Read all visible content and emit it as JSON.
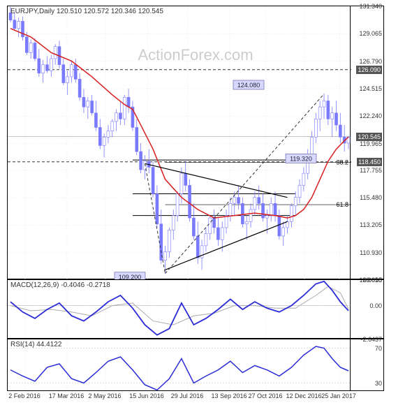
{
  "symbol": "EURJPY",
  "timeframe": "Daily",
  "ohlc": {
    "o": "120.510",
    "h": "120.572",
    "l": "120.346",
    "c": "120.545"
  },
  "watermark": "ActionForex.com",
  "main": {
    "ylim": [
      108.655,
      131.34
    ],
    "yticks": [
      131.34,
      129.065,
      126.79,
      124.515,
      122.24,
      119.965,
      117.755,
      115.48,
      113.205,
      110.93,
      108.655
    ],
    "current_price": 120.545,
    "dashed_levels": [
      {
        "value": 126.09,
        "tag": "126.090"
      },
      {
        "value": 118.45,
        "tag": "118.450"
      }
    ],
    "fib_lines": [
      {
        "value": 118.4,
        "label": "38.2"
      },
      {
        "value": 114.9,
        "label": "61.8"
      }
    ],
    "price_labels": [
      {
        "text": "124.080",
        "x": 345,
        "y_val": 124.8
      },
      {
        "text": "119.320",
        "x": 420,
        "y_val": 118.7
      },
      {
        "text": "109.200",
        "x": 175,
        "y_val": 108.9
      }
    ],
    "solid_hlines": [
      118.6,
      115.8,
      114.0
    ],
    "ma_color": "#d81e1e",
    "candle_up": "#7a7aff",
    "candle_dn": "#7a7aff",
    "triangle_color": "#000",
    "projection_color": "#333"
  },
  "macd": {
    "title": "MACD(12,26,9) -0.4046 -0.2718",
    "ylim": [
      -2.6437,
      2.0018
    ],
    "yticks": [
      2.0018,
      0.0,
      -2.6437
    ],
    "macd_color": "#2b2bd6",
    "signal_color": "#aaa"
  },
  "rsi": {
    "title": "RSI(14) 44.4122",
    "ylim": [
      20,
      80
    ],
    "yticks": [
      70,
      30
    ],
    "line_color": "#2b2bd6"
  },
  "x_dates": [
    "2 Feb 2016",
    "17 Mar 2016",
    "2 May 2016",
    "15 Jun 2016",
    "29 Jul 2016",
    "13 Sep 2016",
    "27 Oct 2016",
    "12 Dec 2016",
    "25 Jan 2017"
  ],
  "x_positions": [
    25,
    85,
    140,
    200,
    258,
    318,
    370,
    425,
    475
  ],
  "candles": [
    [
      0,
      130.8,
      131.3,
      130.0,
      130.2
    ],
    [
      1,
      130.2,
      130.9,
      129.3,
      129.5
    ],
    [
      2,
      129.5,
      130.4,
      128.8,
      130.1
    ],
    [
      3,
      130.1,
      130.5,
      128.5,
      128.8
    ],
    [
      4,
      128.8,
      129.2,
      127.3,
      127.5
    ],
    [
      5,
      127.5,
      128.6,
      127.0,
      128.3
    ],
    [
      6,
      128.3,
      128.7,
      126.8,
      127.0
    ],
    [
      7,
      127.0,
      127.8,
      125.5,
      125.8
    ],
    [
      8,
      125.8,
      126.9,
      125.0,
      126.5
    ],
    [
      9,
      126.5,
      127.2,
      125.8,
      126.0
    ],
    [
      10,
      126.0,
      127.3,
      125.5,
      127.0
    ],
    [
      11,
      127.0,
      128.2,
      126.5,
      128.0
    ],
    [
      12,
      128.0,
      128.5,
      126.2,
      126.5
    ],
    [
      13,
      126.5,
      127.0,
      124.8,
      125.0
    ],
    [
      14,
      125.0,
      126.0,
      124.0,
      125.5
    ],
    [
      15,
      125.5,
      126.8,
      125.0,
      126.5
    ],
    [
      16,
      126.5,
      127.0,
      125.0,
      125.3
    ],
    [
      17,
      125.3,
      125.8,
      123.5,
      123.8
    ],
    [
      18,
      123.8,
      124.5,
      122.5,
      123.0
    ],
    [
      19,
      123.0,
      123.8,
      122.0,
      123.5
    ],
    [
      20,
      123.5,
      124.0,
      122.3,
      122.5
    ],
    [
      21,
      122.5,
      123.5,
      121.0,
      121.3
    ],
    [
      22,
      121.3,
      122.0,
      119.5,
      119.8
    ],
    [
      23,
      119.8,
      120.8,
      118.8,
      120.5
    ],
    [
      24,
      120.5,
      121.5,
      120.0,
      121.0
    ],
    [
      25,
      121.0,
      122.0,
      120.5,
      121.8
    ],
    [
      26,
      121.8,
      122.8,
      121.0,
      122.5
    ],
    [
      27,
      122.5,
      123.5,
      121.5,
      122.0
    ],
    [
      28,
      122.0,
      124.0,
      121.5,
      123.8
    ],
    [
      29,
      123.8,
      124.5,
      122.5,
      123.0
    ],
    [
      30,
      123.0,
      123.5,
      121.0,
      121.3
    ],
    [
      31,
      121.3,
      122.0,
      119.0,
      119.3
    ],
    [
      32,
      119.3,
      120.0,
      117.5,
      117.8
    ],
    [
      33,
      117.8,
      119.0,
      117.0,
      118.5
    ],
    [
      34,
      118.5,
      119.5,
      117.5,
      118.0
    ],
    [
      35,
      118.0,
      118.5,
      115.5,
      115.8
    ],
    [
      36,
      115.8,
      116.5,
      113.0,
      113.3
    ],
    [
      37,
      113.3,
      114.5,
      110.0,
      110.3
    ],
    [
      38,
      110.3,
      111.5,
      109.2,
      111.0
    ],
    [
      39,
      111.0,
      113.0,
      110.5,
      112.8
    ],
    [
      40,
      112.8,
      114.5,
      112.0,
      114.0
    ],
    [
      41,
      114.0,
      116.0,
      113.5,
      115.8
    ],
    [
      42,
      115.8,
      118.0,
      115.0,
      117.5
    ],
    [
      43,
      117.5,
      118.5,
      116.0,
      116.5
    ],
    [
      44,
      116.5,
      117.0,
      113.5,
      113.8
    ],
    [
      45,
      113.8,
      115.0,
      112.0,
      112.3
    ],
    [
      46,
      112.3,
      113.5,
      110.0,
      110.5
    ],
    [
      47,
      110.5,
      112.0,
      109.5,
      111.5
    ],
    [
      48,
      111.5,
      113.0,
      111.0,
      112.5
    ],
    [
      49,
      112.5,
      114.0,
      112.0,
      113.8
    ],
    [
      50,
      113.8,
      114.5,
      112.5,
      113.0
    ],
    [
      51,
      113.0,
      113.8,
      111.5,
      112.0
    ],
    [
      52,
      112.0,
      113.5,
      111.0,
      113.0
    ],
    [
      53,
      113.0,
      114.5,
      112.5,
      114.0
    ],
    [
      54,
      114.0,
      115.5,
      113.5,
      115.0
    ],
    [
      55,
      115.0,
      116.0,
      114.0,
      115.5
    ],
    [
      56,
      115.5,
      116.5,
      114.5,
      115.0
    ],
    [
      57,
      115.0,
      115.5,
      113.0,
      113.3
    ],
    [
      58,
      113.3,
      114.0,
      112.0,
      113.5
    ],
    [
      59,
      113.5,
      115.0,
      113.0,
      114.5
    ],
    [
      60,
      114.5,
      116.0,
      114.0,
      115.5
    ],
    [
      61,
      115.5,
      116.5,
      114.5,
      115.0
    ],
    [
      62,
      115.0,
      115.8,
      113.5,
      113.8
    ],
    [
      63,
      113.8,
      114.5,
      112.5,
      114.0
    ],
    [
      64,
      114.0,
      115.5,
      113.5,
      115.0
    ],
    [
      65,
      115.0,
      116.0,
      113.5,
      114.0
    ],
    [
      66,
      114.0,
      114.5,
      112.0,
      112.3
    ],
    [
      67,
      112.3,
      113.5,
      111.5,
      113.0
    ],
    [
      68,
      113.0,
      114.0,
      112.5,
      113.5
    ],
    [
      69,
      113.5,
      115.0,
      113.0,
      114.8
    ],
    [
      70,
      114.8,
      116.0,
      114.0,
      115.5
    ],
    [
      71,
      115.5,
      117.0,
      115.0,
      116.5
    ],
    [
      72,
      116.5,
      118.0,
      116.0,
      117.5
    ],
    [
      73,
      117.5,
      119.5,
      117.0,
      119.0
    ],
    [
      74,
      119.0,
      121.0,
      118.5,
      120.5
    ],
    [
      75,
      120.5,
      122.5,
      120.0,
      122.0
    ],
    [
      76,
      122.0,
      123.5,
      121.0,
      123.0
    ],
    [
      77,
      123.0,
      124.1,
      122.0,
      123.5
    ],
    [
      78,
      123.5,
      124.0,
      121.5,
      122.0
    ],
    [
      79,
      122.0,
      123.0,
      120.5,
      122.5
    ],
    [
      80,
      122.5,
      123.5,
      121.0,
      121.5
    ],
    [
      81,
      121.5,
      122.5,
      120.0,
      120.5
    ],
    [
      82,
      120.5,
      121.5,
      119.3,
      120.0
    ],
    [
      83,
      120.0,
      120.6,
      119.5,
      120.5
    ]
  ],
  "ma_points": [
    [
      0,
      129.5
    ],
    [
      5,
      128.8
    ],
    [
      10,
      127.5
    ],
    [
      15,
      126.8
    ],
    [
      20,
      125.5
    ],
    [
      25,
      124.0
    ],
    [
      28,
      123.2
    ],
    [
      30,
      122.8
    ],
    [
      32,
      121.5
    ],
    [
      35,
      119.5
    ],
    [
      38,
      117.0
    ],
    [
      42,
      115.5
    ],
    [
      46,
      114.5
    ],
    [
      50,
      113.8
    ],
    [
      55,
      114.0
    ],
    [
      60,
      114.2
    ],
    [
      65,
      114.0
    ],
    [
      68,
      113.8
    ],
    [
      70,
      114.0
    ],
    [
      72,
      114.5
    ],
    [
      74,
      115.5
    ],
    [
      76,
      117.0
    ],
    [
      78,
      118.5
    ],
    [
      80,
      119.5
    ],
    [
      82,
      120.2
    ],
    [
      83,
      120.5
    ]
  ],
  "macd_line": [
    [
      0,
      0.3
    ],
    [
      3,
      -0.5
    ],
    [
      6,
      -1.0
    ],
    [
      9,
      -0.3
    ],
    [
      12,
      0.2
    ],
    [
      15,
      -0.8
    ],
    [
      18,
      -1.2
    ],
    [
      21,
      -0.5
    ],
    [
      24,
      0.3
    ],
    [
      27,
      0.8
    ],
    [
      30,
      -0.2
    ],
    [
      33,
      -1.5
    ],
    [
      36,
      -2.3
    ],
    [
      39,
      -1.8
    ],
    [
      42,
      0.2
    ],
    [
      45,
      -1.5
    ],
    [
      48,
      -1.0
    ],
    [
      51,
      -0.3
    ],
    [
      54,
      0.5
    ],
    [
      57,
      -0.3
    ],
    [
      60,
      0.3
    ],
    [
      63,
      -0.2
    ],
    [
      66,
      -0.5
    ],
    [
      69,
      0.0
    ],
    [
      72,
      0.8
    ],
    [
      75,
      1.7
    ],
    [
      77,
      1.9
    ],
    [
      79,
      1.2
    ],
    [
      81,
      0.3
    ],
    [
      83,
      -0.4
    ]
  ],
  "macd_signal": [
    [
      0,
      0.0
    ],
    [
      5,
      -0.4
    ],
    [
      10,
      -0.3
    ],
    [
      15,
      -0.5
    ],
    [
      20,
      -0.8
    ],
    [
      25,
      0.0
    ],
    [
      30,
      0.2
    ],
    [
      35,
      -1.2
    ],
    [
      40,
      -1.5
    ],
    [
      45,
      -0.8
    ],
    [
      50,
      -0.6
    ],
    [
      55,
      0.0
    ],
    [
      60,
      0.0
    ],
    [
      65,
      -0.2
    ],
    [
      70,
      -0.2
    ],
    [
      75,
      0.8
    ],
    [
      78,
      1.5
    ],
    [
      81,
      1.0
    ],
    [
      83,
      -0.27
    ]
  ],
  "rsi_line": [
    [
      0,
      45
    ],
    [
      3,
      38
    ],
    [
      6,
      32
    ],
    [
      9,
      48
    ],
    [
      12,
      52
    ],
    [
      15,
      35
    ],
    [
      18,
      30
    ],
    [
      21,
      42
    ],
    [
      24,
      55
    ],
    [
      27,
      60
    ],
    [
      30,
      45
    ],
    [
      33,
      28
    ],
    [
      36,
      22
    ],
    [
      39,
      35
    ],
    [
      42,
      58
    ],
    [
      45,
      30
    ],
    [
      48,
      38
    ],
    [
      51,
      45
    ],
    [
      54,
      55
    ],
    [
      57,
      42
    ],
    [
      60,
      50
    ],
    [
      63,
      45
    ],
    [
      66,
      38
    ],
    [
      69,
      48
    ],
    [
      72,
      62
    ],
    [
      75,
      72
    ],
    [
      77,
      70
    ],
    [
      79,
      58
    ],
    [
      81,
      48
    ],
    [
      83,
      44
    ]
  ]
}
